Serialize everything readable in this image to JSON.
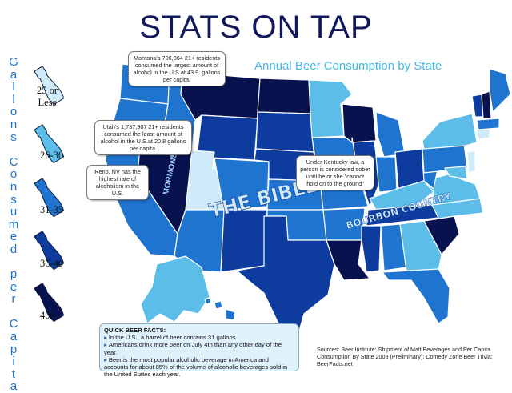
{
  "title": "STATS ON TAP",
  "subtitle": "Annual Beer Consumption by State",
  "vertical_label": "Gallons Consumed per Capita",
  "legend": [
    {
      "label": "25 or Less",
      "color": "#cfeaf8"
    },
    {
      "label": "26-30",
      "color": "#5bbde8"
    },
    {
      "label": "31-35",
      "color": "#1f74cf"
    },
    {
      "label": "36-40",
      "color": "#0e3c9e"
    },
    {
      "label": "40+",
      "color": "#07124f"
    }
  ],
  "callouts": {
    "montana": "Montana's 706,064 21+ residents consumed the largest amount of alcohol in the U.S.at 43.9. gallons per capita.",
    "utah": "Utah's 1,737,907 21+ residents consumed the least amount of alcohol in the U.S.at 20.8 gallons per capita.",
    "reno": "Reno, NV has the highest rate of alcoholism in the U.S.",
    "kentucky": "Under Kentucky law, a person is considered sober until he or she \"cannot hold on to the ground\""
  },
  "map_labels": {
    "mormons": "MORMONS",
    "bible_belt": "THE BIBLE BELT",
    "bourbon_country": "BOURBON COUNTRY"
  },
  "facts": {
    "heading": "QUICK BEER FACTS:",
    "items": [
      "In the U.S., a barrel of beer contains 31 gallons.",
      "Americans drink more beer on July 4th than any other day of the year.",
      "Beer is the most popular alcoholic beverage in America and accounts for about 85% of the volume of alcoholic beverages sold in the United States each year."
    ]
  },
  "sources": "Sources: Beer Institute: Shipment of Malt Beverages and Per Capita Consumption By State 2008 (Preliminary); Comedy Zone Beer Trivia; BeerFacts.net"
}
